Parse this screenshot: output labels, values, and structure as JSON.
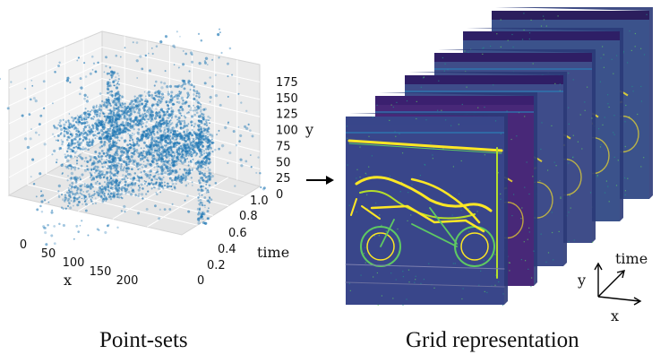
{
  "point_plot": {
    "x_label": "x",
    "y_label": "y",
    "time_label": "time",
    "x_ticks": [
      "0",
      "50",
      "100",
      "150",
      "200"
    ],
    "y_ticks": [
      "0",
      "25",
      "50",
      "75",
      "100",
      "125",
      "150",
      "175"
    ],
    "time_ticks": [
      "0",
      "0.2",
      "0.4",
      "0.6",
      "0.8",
      "1.0"
    ],
    "point_color": "#1f77b4"
  },
  "grid_panel": {
    "time_label": "time",
    "y_label": "y",
    "x_label": "x",
    "frame_color": "#3b528b",
    "highlight_color": "#fde725"
  },
  "captions": {
    "left": "Point-sets",
    "right": "Grid representation"
  }
}
